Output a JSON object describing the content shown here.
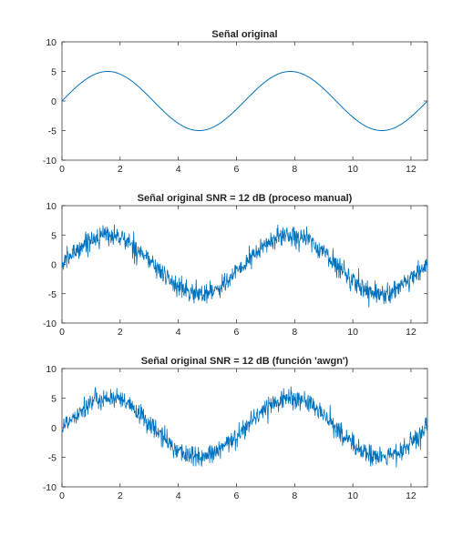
{
  "chart_data": [
    {
      "type": "line",
      "title": "Señal original",
      "xlim": [
        0,
        12.566
      ],
      "ylim": [
        -10,
        10
      ],
      "xticks": [
        "0",
        "2",
        "4",
        "6",
        "8",
        "10",
        "12"
      ],
      "yticks": [
        "10",
        "5",
        "0",
        "-5",
        "-10"
      ],
      "grid": false,
      "series": [
        {
          "color": "#0072BD",
          "function": "5*sin(t)",
          "x_range": [
            0,
            12.566
          ],
          "noise_std": 0,
          "samples": 1000
        }
      ]
    },
    {
      "type": "line",
      "title": "Señal original SNR = 12 dB (proceso manual)",
      "xlim": [
        0,
        12.566
      ],
      "ylim": [
        -10,
        10
      ],
      "xticks": [
        "0",
        "2",
        "4",
        "6",
        "8",
        "10",
        "12"
      ],
      "yticks": [
        "10",
        "5",
        "0",
        "-5",
        "-10"
      ],
      "grid": false,
      "series": [
        {
          "color": "#0072BD",
          "function": "5*sin(t) + noise",
          "x_range": [
            0,
            12.566
          ],
          "noise_std": 0.89,
          "samples": 1000
        }
      ]
    },
    {
      "type": "line",
      "title": "Señal original SNR = 12 dB (función 'awgn')",
      "xlim": [
        0,
        12.566
      ],
      "ylim": [
        -10,
        10
      ],
      "xticks": [
        "0",
        "2",
        "4",
        "6",
        "8",
        "10",
        "12"
      ],
      "yticks": [
        "10",
        "5",
        "0",
        "-5",
        "-10"
      ],
      "grid": false,
      "series": [
        {
          "color": "#0072BD",
          "function": "5*sin(t) + noise",
          "x_range": [
            0,
            12.566
          ],
          "noise_std": 0.89,
          "samples": 1000
        }
      ]
    }
  ]
}
